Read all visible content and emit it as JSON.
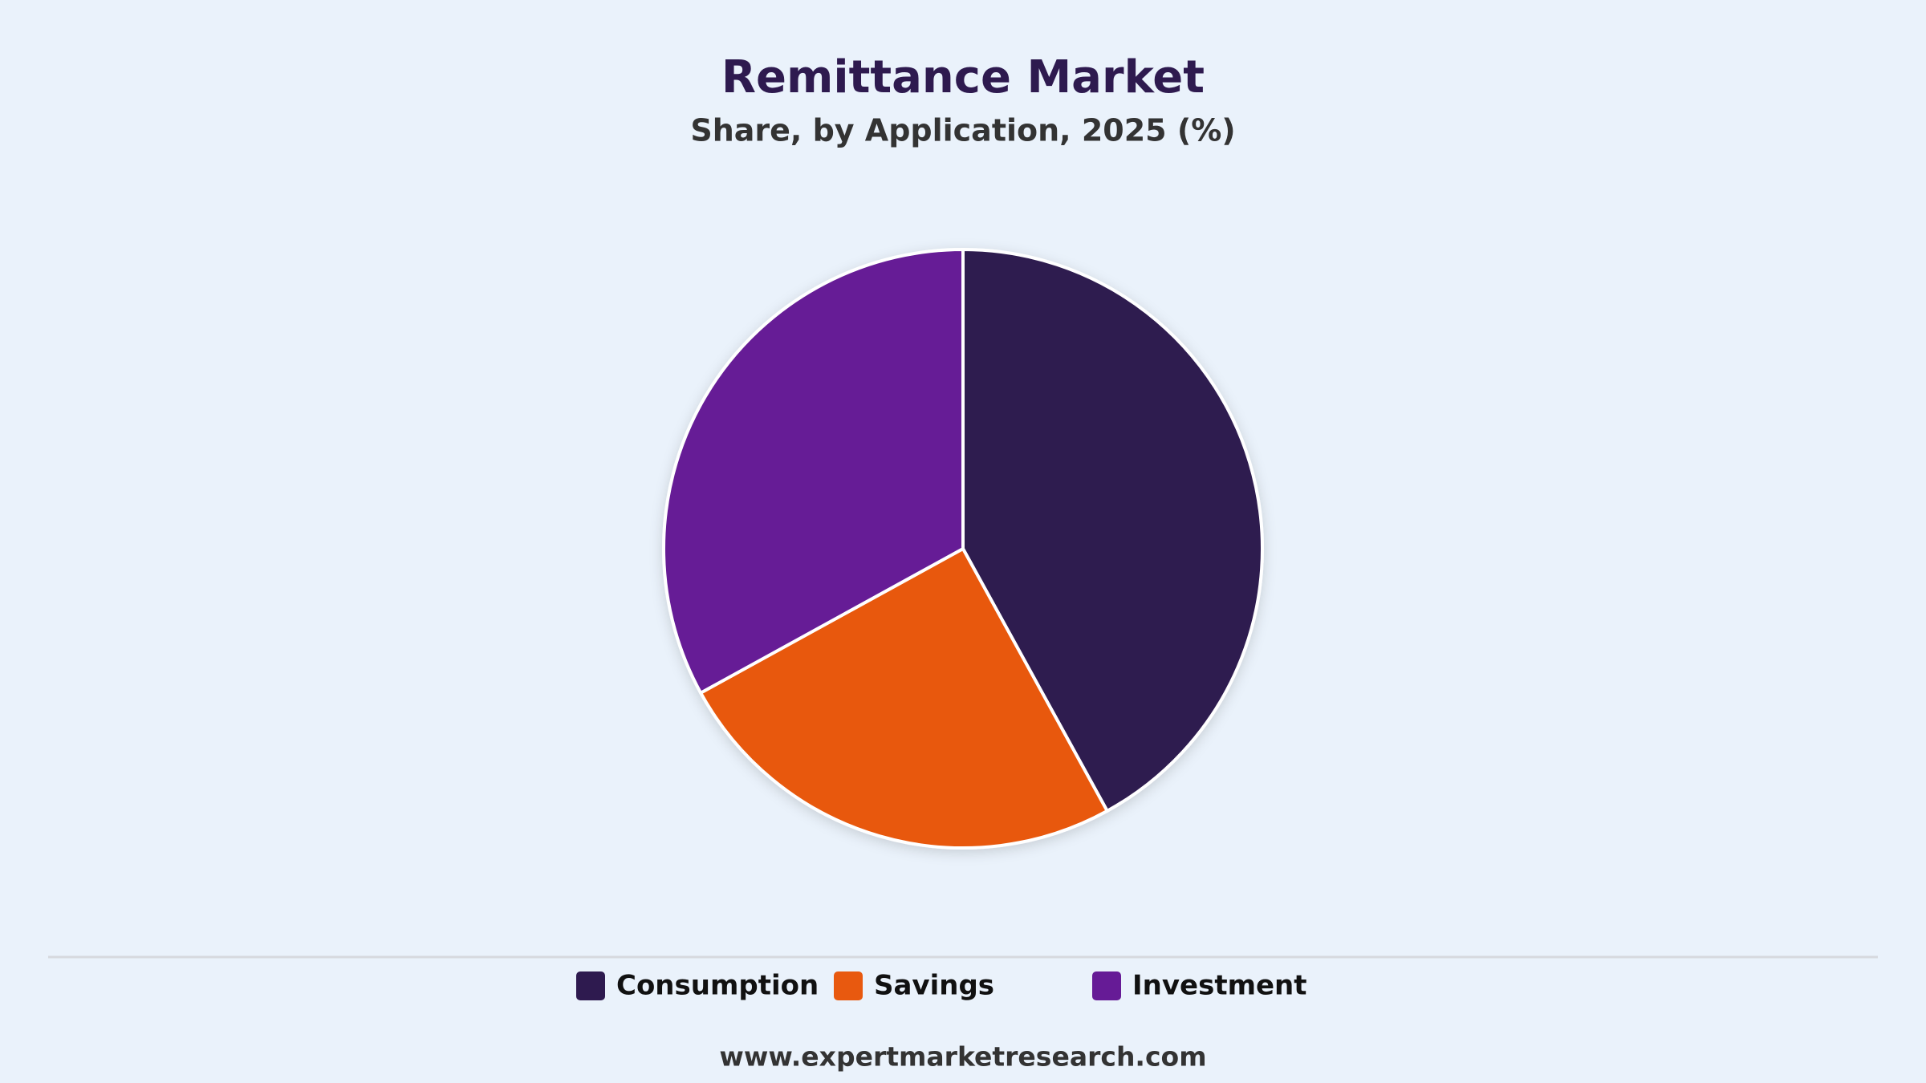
{
  "chart_data": {
    "type": "pie",
    "title": "Remittance Market",
    "subtitle": "Share, by Application, 2025 (%)",
    "categories": [
      "Consumption",
      "Savings",
      "Investment"
    ],
    "values": [
      42,
      25,
      33
    ],
    "colors": [
      "#2e1a4f",
      "#e8590f",
      "#661b96"
    ],
    "legend": "bottom"
  },
  "footer": "www.expertmarketresearch.com"
}
